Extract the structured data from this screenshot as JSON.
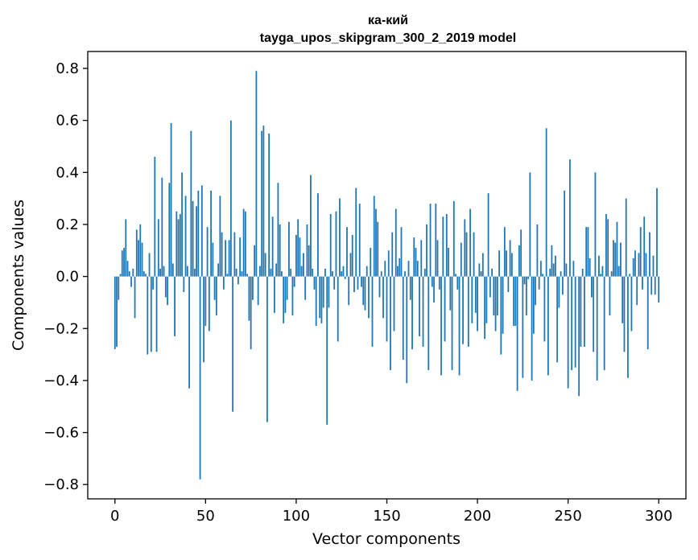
{
  "chart_data": {
    "type": "bar",
    "title_line1": "ка-кий",
    "title_line2": "tayga_upos_skipgram_300_2_2019 model",
    "xlabel": "Vector components",
    "ylabel": "Components values",
    "xlim": [
      -15,
      315
    ],
    "ylim": [
      -0.855,
      0.865
    ],
    "xticks": [
      0,
      50,
      100,
      150,
      200,
      250,
      300
    ],
    "yticks": [
      -0.8,
      -0.6,
      -0.4,
      -0.2,
      0.0,
      0.2,
      0.4,
      0.6,
      0.8
    ],
    "ytick_labels": [
      "−0.8",
      "−0.6",
      "−0.4",
      "−0.2",
      "0.0",
      "0.2",
      "0.4",
      "0.6",
      "0.8"
    ],
    "bar_color": "#1f77b4",
    "values": [
      -0.28,
      -0.27,
      -0.09,
      0.01,
      0.1,
      0.11,
      0.22,
      0.06,
      0.02,
      -0.04,
      0.03,
      -0.16,
      0.18,
      0.14,
      0.2,
      0.13,
      0.02,
      0.01,
      -0.3,
      0.09,
      -0.29,
      -0.05,
      0.46,
      -0.29,
      0.22,
      0.03,
      0.38,
      0.04,
      -0.08,
      -0.11,
      0.36,
      0.59,
      0.05,
      -0.23,
      0.25,
      0.22,
      0.24,
      0.4,
      -0.06,
      0.31,
      0.04,
      -0.43,
      0.56,
      0.29,
      0.03,
      0.27,
      0.33,
      -0.78,
      0.35,
      -0.33,
      -0.19,
      0.19,
      -0.21,
      0.33,
      0.13,
      -0.09,
      -0.15,
      0.05,
      0.31,
      0.17,
      -0.05,
      0.14,
      0.01,
      0.14,
      0.6,
      -0.52,
      0.17,
      0.03,
      -0.03,
      0.15,
      0.02,
      0.26,
      0.25,
      0.01,
      -0.17,
      -0.28,
      -0.09,
      0.12,
      0.79,
      -0.11,
      0.04,
      0.56,
      0.58,
      0.09,
      -0.56,
      0.55,
      0.03,
      0.23,
      -0.14,
      0.05,
      0.36,
      0.2,
      0.02,
      -0.18,
      -0.14,
      -0.09,
      0.21,
      0.03,
      -0.15,
      -0.04,
      0.16,
      0.22,
      0.15,
      0.04,
      0.09,
      -0.09,
      0.2,
      0.12,
      0.39,
      0.03,
      -0.05,
      -0.19,
      0.32,
      -0.16,
      -0.18,
      -0.12,
      0.03,
      -0.57,
      -0.12,
      0.24,
      0.02,
      -0.05,
      0.25,
      -0.25,
      0.3,
      0.02,
      0.04,
      -0.01,
      0.19,
      -0.11,
      0.09,
      0.16,
      -0.06,
      0.34,
      -0.05,
      0.28,
      -0.04,
      -0.11,
      -0.13,
      0.04,
      -0.16,
      0.11,
      -0.27,
      0.31,
      0.26,
      0.21,
      -0.08,
      0.02,
      -0.16,
      0.06,
      -0.25,
      0.1,
      -0.36,
      0.17,
      -0.21,
      0.26,
      0.04,
      0.07,
      0.19,
      -0.32,
      0.02,
      -0.41,
      0.06,
      -0.09,
      -0.28,
      0.15,
      0.11,
      0.06,
      -0.23,
      0.14,
      -0.27,
      0.03,
      0.2,
      -0.36,
      0.28,
      -0.04,
      -0.1,
      0.28,
      0.14,
      -0.05,
      -0.38,
      0.23,
      -0.25,
      0.24,
      0.11,
      -0.13,
      -0.36,
      0.29,
      0.01,
      -0.05,
      -0.38,
      0.13,
      -0.26,
      0.22,
      0.17,
      -0.27,
      0.26,
      -0.18,
      0.17,
      -0.14,
      -0.21,
      0.05,
      0.02,
      0.09,
      -0.24,
      -0.18,
      0.32,
      -0.08,
      0.03,
      -0.15,
      -0.21,
      -0.15,
      0.1,
      -0.3,
      -0.22,
      0.19,
      0.1,
      -0.06,
      0.14,
      0.09,
      -0.19,
      -0.19,
      -0.44,
      0.12,
      0.18,
      -0.39,
      -0.03,
      -0.15,
      -0.01,
      0.4,
      -0.4,
      -0.22,
      -0.11,
      0.2,
      -0.05,
      0.06,
      0.01,
      -0.25,
      0.57,
      -0.38,
      0.03,
      0.12,
      0.05,
      0.08,
      -0.33,
      -0.12,
      0.02,
      -0.07,
      0.33,
      0.05,
      -0.43,
      0.45,
      -0.36,
      0.06,
      -0.35,
      0.0,
      -0.46,
      -0.27,
      0.03,
      -0.27,
      0.19,
      0.19,
      0.07,
      -0.08,
      -0.29,
      0.4,
      -0.4,
      0.08,
      0.01,
      0.04,
      -0.36,
      0.24,
      0.22,
      -0.15,
      0.02,
      0.14,
      0.13,
      0.21,
      0.04,
      0.13,
      -0.18,
      -0.29,
      0.3,
      -0.39,
      0.01,
      -0.21,
      0.07,
      0.1,
      -0.11,
      0.09,
      0.19,
      -0.05,
      0.23,
      0.09,
      -0.28,
      0.17,
      -0.07,
      0.08,
      -0.07,
      0.34,
      -0.1
    ]
  }
}
